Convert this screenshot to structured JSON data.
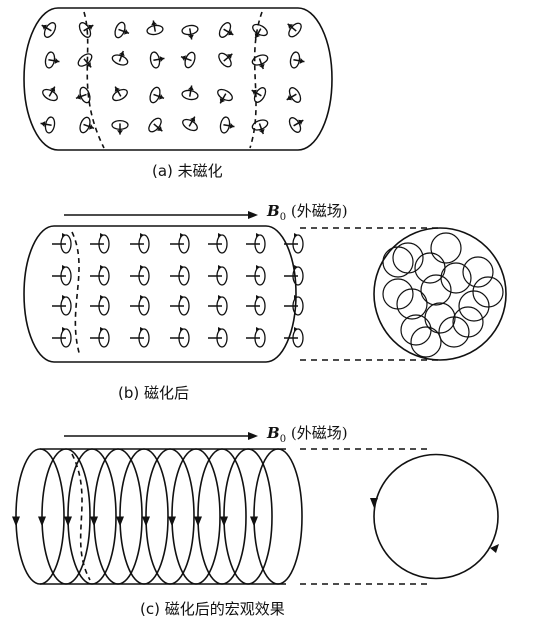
{
  "captions": {
    "a": "(a) 未磁化",
    "b": "(b) 磁化后",
    "c": "(c) 磁化后的宏观效果"
  },
  "field_label": {
    "symbol": "B",
    "subscript": "0",
    "text": "(外磁场)"
  },
  "colors": {
    "ink": "#111111",
    "background": "#ffffff"
  }
}
